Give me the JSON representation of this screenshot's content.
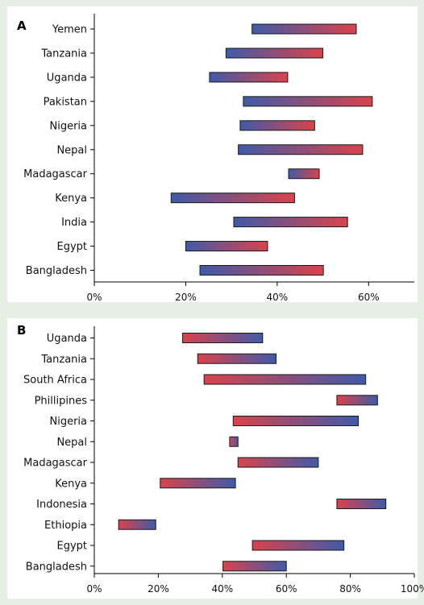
{
  "colors": {
    "background": "#e6efe3",
    "panel": "#ffffff",
    "gradient_blue": "#3f5ba8",
    "gradient_red": "#d9434b"
  },
  "chart_data": [
    {
      "type": "range-bar",
      "panel_label": "A",
      "title": "",
      "xlabel": "",
      "ylabel": "",
      "xlim": [
        0,
        70
      ],
      "x_ticks": [
        "0%",
        "20%",
        "40%",
        "60%"
      ],
      "x_tick_values": [
        0,
        20,
        40,
        60
      ],
      "grid": false,
      "color_gradient": "blue-to-red",
      "categories": [
        "Yemen",
        "Tanzania",
        "Uganda",
        "Pakistan",
        "Nigeria",
        "Nepal",
        "Madagascar",
        "Kenya",
        "India",
        "Egypt",
        "Bangladesh"
      ],
      "low": [
        34.5,
        28.8,
        25.2,
        32.6,
        31.9,
        31.5,
        42.5,
        16.8,
        30.5,
        20.0,
        23.1
      ],
      "high": [
        57.3,
        50.0,
        42.3,
        60.8,
        48.2,
        58.7,
        49.2,
        43.8,
        55.4,
        37.9,
        50.1
      ]
    },
    {
      "type": "range-bar",
      "panel_label": "B",
      "title": "",
      "xlabel": "",
      "ylabel": "",
      "xlim": [
        0,
        100
      ],
      "x_ticks": [
        "0%",
        "20%",
        "40%",
        "60%",
        "80%",
        "100%"
      ],
      "x_tick_values": [
        0,
        20,
        40,
        60,
        80,
        100
      ],
      "grid": false,
      "color_gradient": "red-to-blue",
      "categories": [
        "Uganda",
        "Tanzania",
        "South Africa",
        "Phillipines",
        "Nigeria",
        "Nepal",
        "Madagascar",
        "Kenya",
        "Indonesia",
        "Ethiopia",
        "Egypt",
        "Bangladesh"
      ],
      "low": [
        27.6,
        32.3,
        34.3,
        75.8,
        43.4,
        42.3,
        44.9,
        20.6,
        75.8,
        7.6,
        49.4,
        40.2
      ],
      "high": [
        52.6,
        56.8,
        84.8,
        88.5,
        82.5,
        44.9,
        70.0,
        44.1,
        91.1,
        19.2,
        78.0,
        60.0
      ]
    }
  ]
}
